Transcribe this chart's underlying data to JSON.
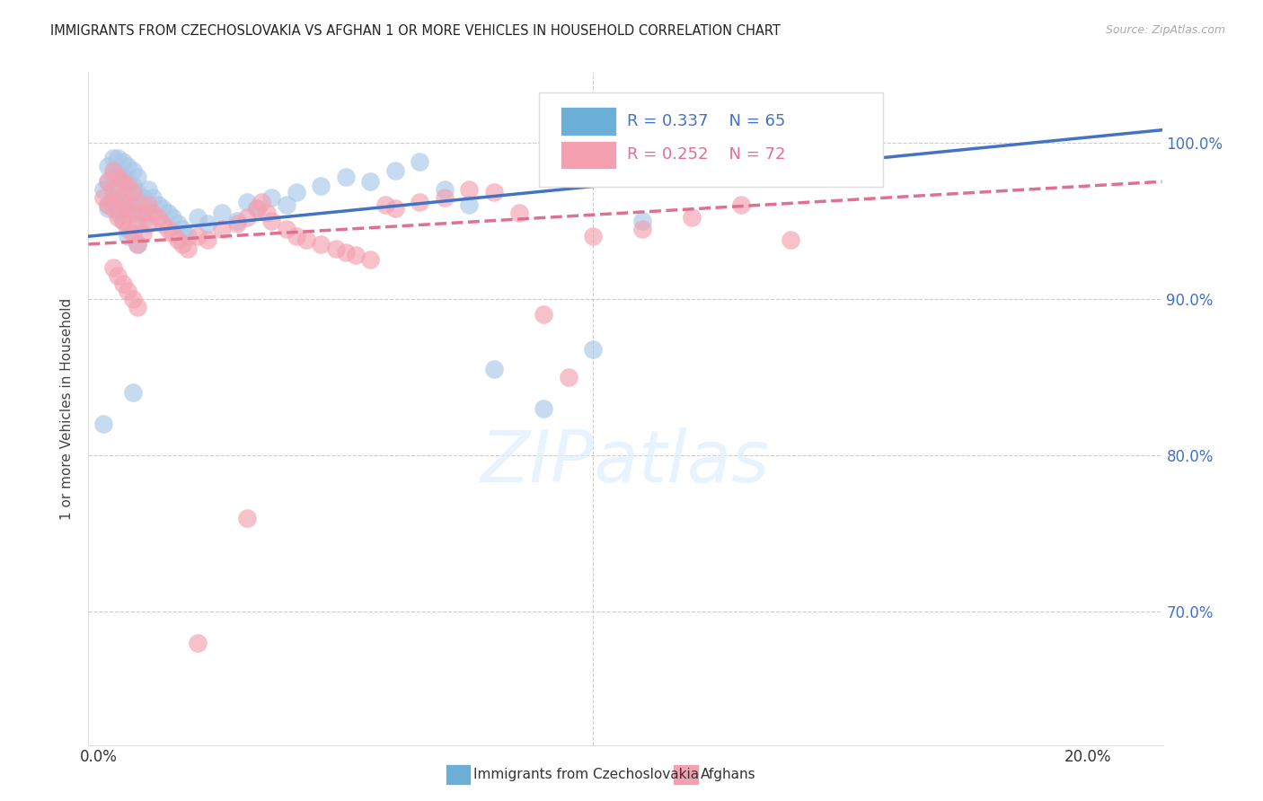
{
  "title": "IMMIGRANTS FROM CZECHOSLOVAKIA VS AFGHAN 1 OR MORE VEHICLES IN HOUSEHOLD CORRELATION CHART",
  "source": "Source: ZipAtlas.com",
  "ylabel": "1 or more Vehicles in Household",
  "r1": 0.337,
  "n1": 65,
  "r2": 0.252,
  "n2": 72,
  "color1": "#a8c8e8",
  "color2": "#f4a0b0",
  "color1_line": "#4472c4",
  "color2_line": "#e07090",
  "color1_legend": "#6baed6",
  "color2_legend": "#f4a0b0",
  "right_ytick_color": "#4472c4",
  "xlim_min": -0.002,
  "xlim_max": 0.215,
  "ylim_min": 0.615,
  "ylim_max": 1.045,
  "yticks": [
    0.7,
    0.8,
    0.9,
    1.0
  ],
  "ytick_labels": [
    "70.0%",
    "80.0%",
    "90.0%",
    "100.0%"
  ],
  "xtick_positions": [
    0.0,
    0.05,
    0.1,
    0.15,
    0.2
  ],
  "xtick_labels": [
    "0.0%",
    "",
    "",
    "",
    "20.0%"
  ],
  "legend_label_1": "Immigrants from Czechoslovakia",
  "legend_label_2": "Afghans",
  "watermark_text": "ZIPatlas",
  "scatter1_x": [
    0.001,
    0.002,
    0.002,
    0.003,
    0.003,
    0.003,
    0.004,
    0.004,
    0.004,
    0.004,
    0.005,
    0.005,
    0.005,
    0.006,
    0.006,
    0.006,
    0.007,
    0.007,
    0.007,
    0.008,
    0.008,
    0.008,
    0.009,
    0.009,
    0.01,
    0.01,
    0.011,
    0.012,
    0.013,
    0.014,
    0.015,
    0.016,
    0.017,
    0.018,
    0.02,
    0.022,
    0.025,
    0.028,
    0.03,
    0.032,
    0.035,
    0.038,
    0.04,
    0.045,
    0.05,
    0.055,
    0.06,
    0.065,
    0.07,
    0.075,
    0.08,
    0.09,
    0.1,
    0.11,
    0.13,
    0.135,
    0.007,
    0.005,
    0.003,
    0.002,
    0.001,
    0.002,
    0.004,
    0.006,
    0.008
  ],
  "scatter1_y": [
    0.97,
    0.985,
    0.975,
    0.99,
    0.98,
    0.965,
    0.99,
    0.982,
    0.97,
    0.958,
    0.988,
    0.978,
    0.96,
    0.985,
    0.975,
    0.962,
    0.982,
    0.972,
    0.958,
    0.978,
    0.968,
    0.955,
    0.965,
    0.95,
    0.97,
    0.955,
    0.965,
    0.96,
    0.958,
    0.955,
    0.952,
    0.948,
    0.945,
    0.94,
    0.952,
    0.948,
    0.955,
    0.95,
    0.962,
    0.958,
    0.965,
    0.96,
    0.968,
    0.972,
    0.978,
    0.975,
    0.982,
    0.988,
    0.97,
    0.96,
    0.855,
    0.83,
    0.868,
    0.95,
    0.995,
    0.985,
    0.84,
    0.95,
    0.962,
    0.958,
    0.82,
    0.96,
    0.955,
    0.94,
    0.935
  ],
  "scatter2_x": [
    0.001,
    0.002,
    0.002,
    0.003,
    0.003,
    0.003,
    0.004,
    0.004,
    0.004,
    0.005,
    0.005,
    0.005,
    0.006,
    0.006,
    0.006,
    0.007,
    0.007,
    0.007,
    0.008,
    0.008,
    0.008,
    0.009,
    0.009,
    0.01,
    0.01,
    0.011,
    0.012,
    0.013,
    0.014,
    0.015,
    0.016,
    0.017,
    0.018,
    0.02,
    0.022,
    0.025,
    0.028,
    0.03,
    0.032,
    0.033,
    0.034,
    0.035,
    0.038,
    0.04,
    0.042,
    0.045,
    0.048,
    0.05,
    0.052,
    0.055,
    0.058,
    0.06,
    0.065,
    0.07,
    0.075,
    0.08,
    0.085,
    0.09,
    0.095,
    0.1,
    0.11,
    0.12,
    0.13,
    0.14,
    0.003,
    0.004,
    0.005,
    0.006,
    0.007,
    0.008,
    0.02,
    0.03
  ],
  "scatter2_y": [
    0.965,
    0.975,
    0.96,
    0.982,
    0.97,
    0.958,
    0.978,
    0.965,
    0.952,
    0.975,
    0.962,
    0.95,
    0.972,
    0.958,
    0.945,
    0.968,
    0.955,
    0.942,
    0.962,
    0.948,
    0.935,
    0.955,
    0.942,
    0.96,
    0.948,
    0.955,
    0.952,
    0.948,
    0.945,
    0.942,
    0.938,
    0.935,
    0.932,
    0.94,
    0.938,
    0.945,
    0.948,
    0.952,
    0.958,
    0.962,
    0.955,
    0.95,
    0.945,
    0.94,
    0.938,
    0.935,
    0.932,
    0.93,
    0.928,
    0.925,
    0.96,
    0.958,
    0.962,
    0.965,
    0.97,
    0.968,
    0.955,
    0.89,
    0.85,
    0.94,
    0.945,
    0.952,
    0.96,
    0.938,
    0.92,
    0.915,
    0.91,
    0.905,
    0.9,
    0.895,
    0.68,
    0.76
  ],
  "trendline1_x": [
    -0.002,
    0.215
  ],
  "trendline1_y": [
    0.94,
    1.008
  ],
  "trendline2_x": [
    -0.002,
    0.215
  ],
  "trendline2_y": [
    0.935,
    0.975
  ]
}
